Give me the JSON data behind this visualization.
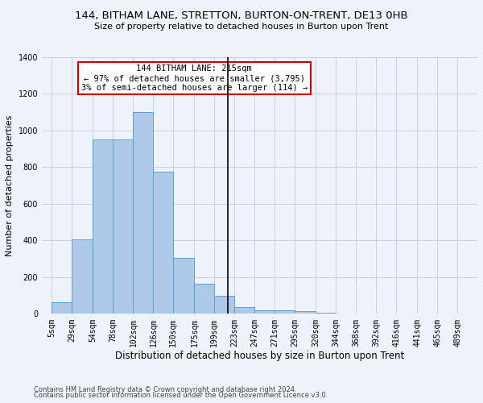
{
  "title": "144, BITHAM LANE, STRETTON, BURTON-ON-TRENT, DE13 0HB",
  "subtitle": "Size of property relative to detached houses in Burton upon Trent",
  "xlabel": "Distribution of detached houses by size in Burton upon Trent",
  "ylabel": "Number of detached properties",
  "footnote1": "Contains HM Land Registry data © Crown copyright and database right 2024.",
  "footnote2": "Contains public sector information licensed under the Open Government Licence v3.0.",
  "annotation_title": "144 BITHAM LANE: 215sqm",
  "annotation_line1": "← 97% of detached houses are smaller (3,795)",
  "annotation_line2": "3% of semi-detached houses are larger (114) →",
  "property_size": 215,
  "bar_categories": [
    "5sqm",
    "29sqm",
    "54sqm",
    "78sqm",
    "102sqm",
    "126sqm",
    "150sqm",
    "175sqm",
    "199sqm",
    "223sqm",
    "247sqm",
    "271sqm",
    "295sqm",
    "320sqm",
    "344sqm",
    "368sqm",
    "392sqm",
    "416sqm",
    "441sqm",
    "465sqm",
    "489sqm"
  ],
  "bar_values": [
    65,
    405,
    950,
    950,
    1100,
    775,
    305,
    165,
    100,
    35,
    18,
    18,
    15,
    8,
    3,
    3,
    3,
    0,
    0,
    0,
    0
  ],
  "bar_edges": [
    5,
    29,
    54,
    78,
    102,
    126,
    150,
    175,
    199,
    223,
    247,
    271,
    295,
    320,
    344,
    368,
    392,
    416,
    441,
    465,
    489,
    513
  ],
  "bar_color": "#aec9e8",
  "bar_edge_color": "#5a9fd4",
  "vline_color": "#000000",
  "vline_x": 215,
  "annotation_box_color": "#cc0000",
  "background_color": "#eef2fa",
  "grid_color": "#c8d0e0",
  "ylim": [
    0,
    1400
  ],
  "yticks": [
    0,
    200,
    400,
    600,
    800,
    1000,
    1200,
    1400
  ],
  "title_fontsize": 9.5,
  "subtitle_fontsize": 8,
  "ylabel_fontsize": 8,
  "xlabel_fontsize": 8.5,
  "tick_fontsize": 7,
  "footnote_fontsize": 6,
  "annot_fontsize": 7.5
}
